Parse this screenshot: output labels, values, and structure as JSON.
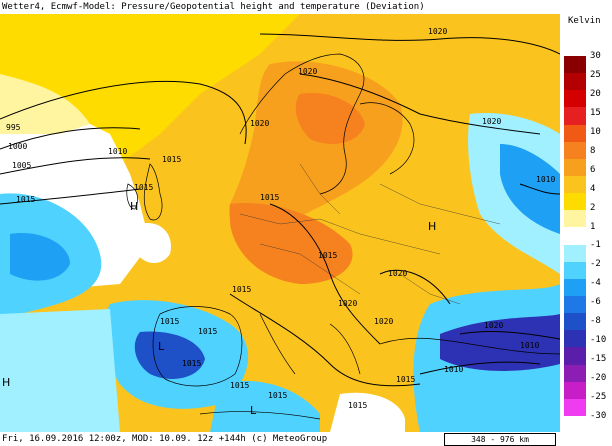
{
  "header": {
    "title": "Wetter4, Ecmwf-Model: Pressure/Geopotential height and temperature (Deviation)"
  },
  "footer": {
    "info": "Fri, 16.09.2016 12:00z, MOD: 10.09. 12z +144h (c) MeteoGroup",
    "scale": "348 - 976 km"
  },
  "legend": {
    "unit": "Kelvin",
    "ticks": [
      "30",
      "25",
      "20",
      "15",
      "10",
      "8",
      "6",
      "4",
      "2",
      "1",
      "-1",
      "-2",
      "-4",
      "-6",
      "-8",
      "-10",
      "-15",
      "-20",
      "-25",
      "-30"
    ],
    "colors": {
      "30": "#8a0000",
      "25": "#b30000",
      "20": "#d40000",
      "15": "#e62020",
      "10": "#f05a14",
      "8": "#f5821e",
      "6": "#f7a01e",
      "4": "#fbc31e",
      "2": "#ffdc00",
      "1": "#fff5a0",
      "0": "#ffffff",
      "-1": "#a0f0ff",
      "-2": "#50d2ff",
      "-4": "#1ea0f5",
      "-6": "#1e78e6",
      "-8": "#1e50c8",
      "-10": "#2d32b4",
      "-15": "#5a1eaa",
      "-20": "#8c1eb4",
      "-25": "#c81ec8",
      "-30": "#f03cf0"
    }
  },
  "map_labels": {
    "isobars": [
      "1020",
      "1020",
      "1020",
      "1020",
      "995",
      "1000",
      "1005",
      "1010",
      "1010",
      "1015",
      "1015",
      "1015",
      "1015",
      "1015",
      "1020",
      "1015",
      "1015",
      "1020",
      "1020",
      "1015",
      "1015",
      "1015",
      "1015",
      "1015",
      "1010",
      "1015",
      "1020",
      "1010"
    ],
    "pressure_centers": [
      "H",
      "H",
      "H",
      "L",
      "L"
    ]
  }
}
